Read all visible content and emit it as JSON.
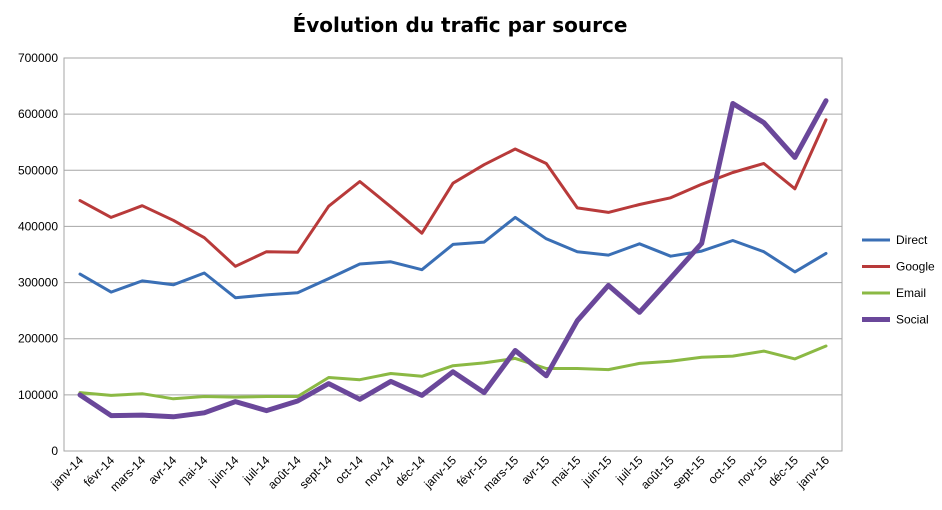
{
  "chart_data": {
    "type": "line",
    "title": "Évolution du trafic par source",
    "xlabel": "",
    "ylabel": "",
    "ylim": [
      0,
      700000
    ],
    "yticks": [
      "0",
      "100000",
      "200000",
      "300000",
      "400000",
      "500000",
      "600000",
      "700000"
    ],
    "grid": true,
    "legend_position": "right",
    "categories": [
      "janv-14",
      "févr-14",
      "mars-14",
      "avr-14",
      "mai-14",
      "juin-14",
      "juil-14",
      "août-14",
      "sept-14",
      "oct-14",
      "nov-14",
      "déc-14",
      "janv-15",
      "févr-15",
      "mars-15",
      "avr-15",
      "mai-15",
      "juin-15",
      "juil-15",
      "août-15",
      "sept-15",
      "oct-15",
      "nov-15",
      "déc-15",
      "janv-16"
    ],
    "series": [
      {
        "name": "Direct",
        "color": "#3a6fb5",
        "width": 3,
        "values": [
          315000,
          283000,
          303000,
          296000,
          317000,
          273000,
          278000,
          282000,
          307000,
          333000,
          337000,
          323000,
          368000,
          372000,
          416000,
          378000,
          355000,
          349000,
          369000,
          347000,
          356000,
          375000,
          355000,
          319000,
          352000
        ]
      },
      {
        "name": "Google",
        "color": "#b83a3a",
        "width": 3,
        "values": [
          446000,
          416000,
          437000,
          411000,
          380000,
          329000,
          355000,
          354000,
          436000,
          480000,
          435000,
          388000,
          477000,
          510000,
          538000,
          512000,
          433000,
          425000,
          439000,
          451000,
          475000,
          496000,
          512000,
          467000,
          590000
        ]
      },
      {
        "name": "Email",
        "color": "#8bb944",
        "width": 3,
        "values": [
          104000,
          99000,
          102000,
          93000,
          97000,
          96000,
          97000,
          97000,
          131000,
          127000,
          138000,
          133000,
          152000,
          157000,
          165000,
          147000,
          147000,
          145000,
          156000,
          160000,
          167000,
          169000,
          178000,
          164000,
          187000
        ]
      },
      {
        "name": "Social",
        "color": "#6a479a",
        "width": 5,
        "values": [
          100000,
          63000,
          64000,
          61000,
          68000,
          88000,
          72000,
          89000,
          120000,
          92000,
          124000,
          99000,
          141000,
          104000,
          179000,
          134000,
          232000,
          295000,
          247000,
          308000,
          370000,
          619000,
          585000,
          523000,
          624000
        ]
      }
    ]
  }
}
